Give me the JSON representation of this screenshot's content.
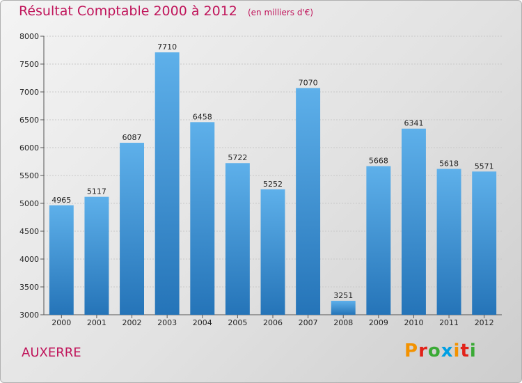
{
  "header": {
    "title": "Résultat Comptable 2000 à 2012",
    "unit": "(en milliers d'€)"
  },
  "footer": {
    "city": "AUXERRE",
    "brand_letters": [
      "P",
      "r",
      "o",
      "x",
      "i",
      "t",
      "i"
    ]
  },
  "colors": {
    "title": "#c0145a",
    "bar_top": "#5eb0ea",
    "bar_bottom": "#2574b8",
    "brand": [
      "#f39200",
      "#e2231a",
      "#3aaa35",
      "#009fe3",
      "#f39200",
      "#e2231a",
      "#3aaa35"
    ]
  },
  "chart_data": {
    "type": "bar",
    "title": "Résultat Comptable 2000 à 2012",
    "xlabel": "",
    "ylabel": "",
    "categories": [
      "2000",
      "2001",
      "2002",
      "2003",
      "2004",
      "2005",
      "2006",
      "2007",
      "2008",
      "2009",
      "2010",
      "2011",
      "2012"
    ],
    "values": [
      4965,
      5117,
      6087,
      7710,
      6458,
      5722,
      5252,
      7070,
      3251,
      5668,
      6341,
      5618,
      5571
    ],
    "value_labels": [
      "4965",
      "5117",
      "6087",
      "7710",
      "6458",
      "5722",
      "5252",
      "7070",
      "3251",
      "5668",
      "6341",
      "5618",
      "5571"
    ],
    "ylim": [
      3000,
      8000
    ],
    "yticks": [
      3000,
      3500,
      4000,
      4500,
      5000,
      5500,
      6000,
      6500,
      7000,
      7500,
      8000
    ],
    "ytick_labels": [
      "3000",
      "3500",
      "4000",
      "4500",
      "5000",
      "5500",
      "6000",
      "6500",
      "7000",
      "7500",
      "8000"
    ],
    "grid": true
  }
}
